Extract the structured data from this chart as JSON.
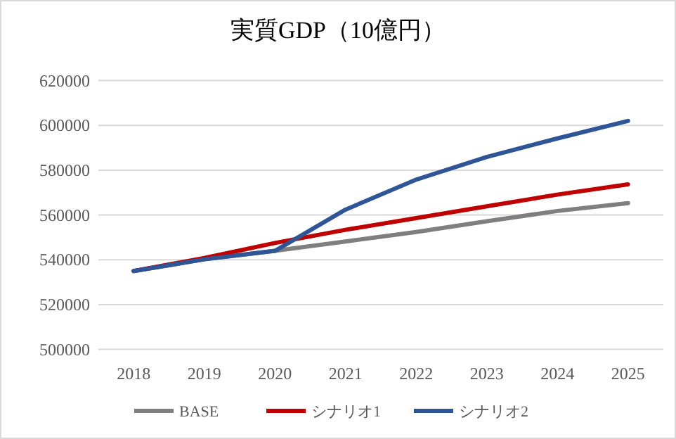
{
  "chart_data": {
    "type": "line",
    "title": "実質GDP（10億円）",
    "categories": [
      "2018",
      "2019",
      "2020",
      "2021",
      "2022",
      "2023",
      "2024",
      "2025"
    ],
    "series": [
      {
        "name": "BASE",
        "color": "#7f7f7f",
        "values": [
          535000,
          540200,
          544000,
          548200,
          552400,
          557200,
          561800,
          565300
        ]
      },
      {
        "name": "シナリオ1",
        "color": "#c00000",
        "values": [
          535000,
          540800,
          547500,
          553400,
          558600,
          563900,
          569100,
          573700
        ]
      },
      {
        "name": "シナリオ2",
        "color": "#2f5597",
        "values": [
          535000,
          540200,
          544000,
          562400,
          575800,
          585900,
          594200,
          602000
        ]
      }
    ],
    "ylim": [
      500000,
      620000
    ],
    "yticks": [
      500000,
      520000,
      540000,
      560000,
      580000,
      600000,
      620000
    ],
    "grid": "y",
    "legend": "bottom",
    "marker": "none",
    "line_style": "solid"
  }
}
